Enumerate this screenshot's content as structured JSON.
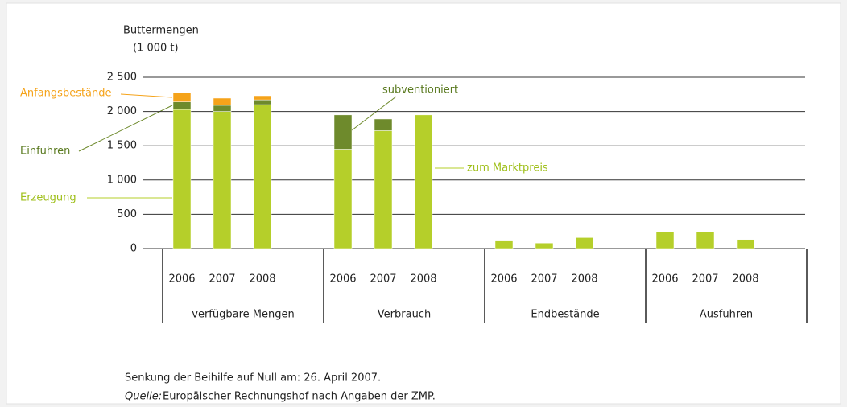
{
  "chart_data": {
    "type": "bar",
    "stacked": true,
    "ylabel": "Buttermengen",
    "yunit": "(1 000 t)",
    "ylim": [
      0,
      2500
    ],
    "yticks": [
      0,
      500,
      {
        "value": 1000,
        "label": "1 000"
      },
      {
        "value": 1500,
        "label": "1 500"
      },
      {
        "value": 2000,
        "label": "2 000"
      },
      {
        "value": 2500,
        "label": "2 500"
      }
    ],
    "grid": true,
    "groups": [
      {
        "name": "verfügbare Mengen",
        "categories": [
          "2006",
          "2007",
          "2008"
        ],
        "series": [
          {
            "name": "Erzeugung",
            "color": "#b5cf2a",
            "values": [
              2030,
              2000,
              2100
            ]
          },
          {
            "name": "Einfuhren",
            "color": "#6e8a2c",
            "values": [
              110,
              90,
              70
            ]
          },
          {
            "name": "Anfangsbestände",
            "color": "#f5a31a",
            "values": [
              130,
              105,
              60
            ]
          }
        ]
      },
      {
        "name": "Verbrauch",
        "categories": [
          "2006",
          "2007",
          "2008"
        ],
        "series": [
          {
            "name": "zum Marktpreis",
            "color": "#b5cf2a",
            "values": [
              1450,
              1720,
              1950
            ]
          },
          {
            "name": "subventioniert",
            "color": "#6e8a2c",
            "values": [
              500,
              170,
              0
            ]
          }
        ]
      },
      {
        "name": "Endbestände",
        "categories": [
          "2006",
          "2007",
          "2008"
        ],
        "series": [
          {
            "color": "#b5cf2a",
            "values": [
              110,
              80,
              160
            ]
          }
        ]
      },
      {
        "name": "Ausfuhren",
        "categories": [
          "2006",
          "2007",
          "2008"
        ],
        "series": [
          {
            "color": "#b5cf2a",
            "values": [
              240,
              240,
              130
            ]
          }
        ]
      }
    ],
    "note": "Senkung der Beihilfe auf Null am: 26. April 2007.",
    "source": {
      "label": "Quelle:",
      "text": "Europäischer Rechnungshof nach Angaben der ZMP."
    }
  }
}
